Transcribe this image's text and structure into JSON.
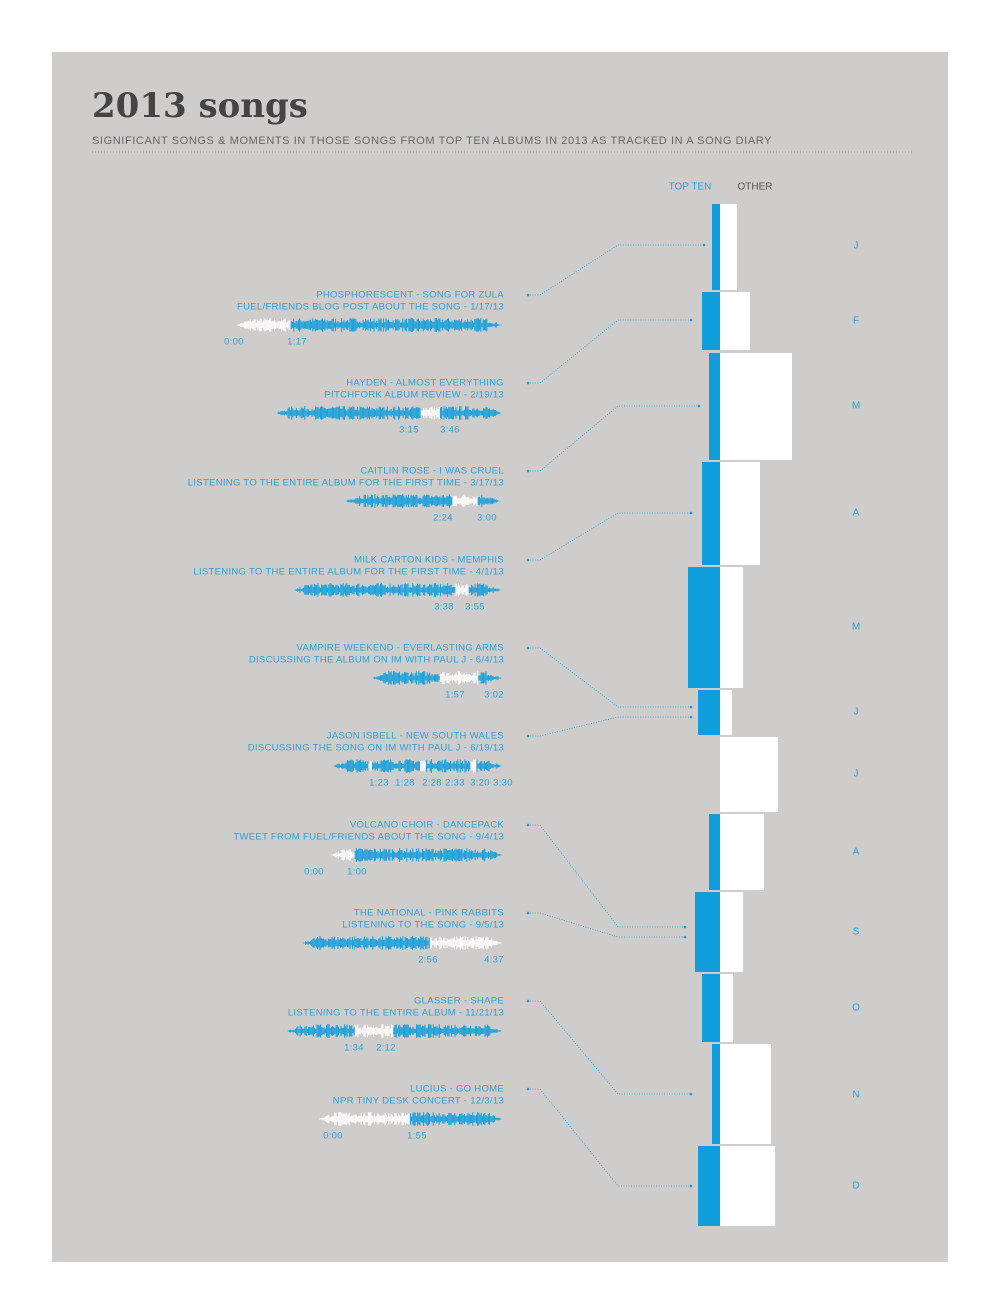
{
  "header": {
    "title": "2013 songs",
    "subtitle": "SIGNIFICANT SONGS & MOMENTS IN THOSE SONGS FROM TOP TEN ALBUMS IN 2013 AS TRACKED IN A SONG DIARY"
  },
  "legend": {
    "top_ten": "TOP TEN",
    "other": "OTHER"
  },
  "months": [
    "J",
    "F",
    "M",
    "A",
    "M",
    "J",
    "J",
    "A",
    "S",
    "O",
    "N",
    "D"
  ],
  "songs": [
    {
      "title": "PHOSPHORESCENT - SONG FOR ZULA",
      "moment": "FUEL/FRIENDS BLOG POST ABOUT THE SONG - 1/17/13",
      "times": [
        "0:00",
        "1:17"
      ]
    },
    {
      "title": "HAYDEN - ALMOST EVERYTHING",
      "moment": "PITCHFORK ALBUM REVIEW - 2/19/13",
      "times": [
        "3:15",
        "3:46"
      ]
    },
    {
      "title": "CAITLIN ROSE - I WAS CRUEL",
      "moment": "LISTENING TO THE ENTIRE ALBUM FOR THE FIRST TIME - 3/17/13",
      "times": [
        "2:24",
        "3:00"
      ]
    },
    {
      "title": "MILK CARTON KIDS - MEMPHIS",
      "moment": "LISTENING TO THE ENTIRE ALBUM FOR THE FIRST TIME - 4/1/13",
      "times": [
        "3:38",
        "3:55"
      ]
    },
    {
      "title": "VAMPIRE WEEKEND - EVERLASTING ARMS",
      "moment": "DISCUSSING THE ALBUM ON IM WITH PAUL J - 6/4/13",
      "times": [
        "1:57",
        "3:02"
      ]
    },
    {
      "title": "JASON ISBELL - NEW SOUTH WALES",
      "moment": "DISCUSSING THE SONG ON IM WITH PAUL J - 6/19/13",
      "times": [
        "1:23",
        "1:28",
        "2:28",
        "2:33",
        "3:20",
        "3:30"
      ]
    },
    {
      "title": "VOLCANO CHOIR - DANCEPACK",
      "moment": "TWEET FROM FUEL/FRIENDS ABOUT THE SONG - 9/4/13",
      "times": [
        "0:00",
        "1:00"
      ]
    },
    {
      "title": "THE NATIONAL - PINK RABBITS",
      "moment": "LISTENING TO THE SONG - 9/5/13",
      "times": [
        "2:56",
        "4:37"
      ]
    },
    {
      "title": "GLASSER - SHAPE",
      "moment": "LISTENING TO THE ENTIRE ALBUM - 11/21/13",
      "times": [
        "1:34",
        "2:12"
      ]
    },
    {
      "title": "LUCIUS - GO HOME",
      "moment": "NPR TINY DESK CONCERT - 12/3/13",
      "times": [
        "0:00",
        "1:55"
      ]
    }
  ]
}
